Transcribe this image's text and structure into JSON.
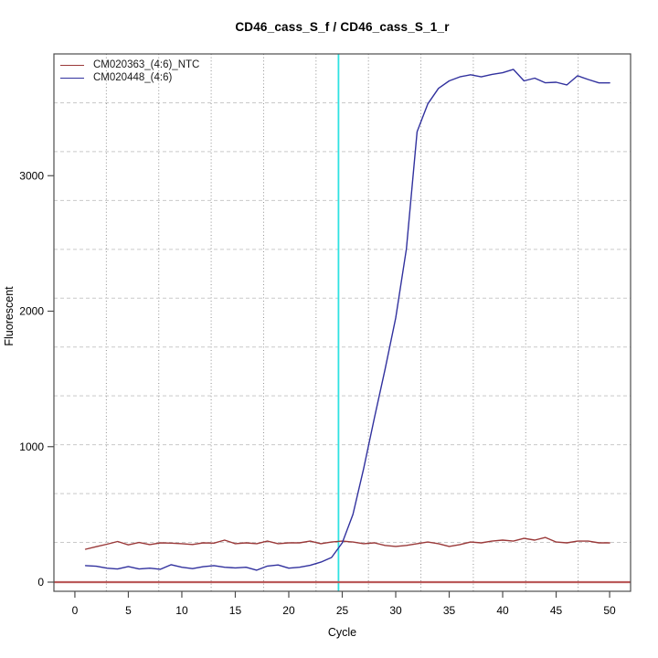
{
  "chart_data": {
    "type": "line",
    "title": "CD46_cass_S_f / CD46_cass_S_1_r",
    "xlabel": "Cycle",
    "ylabel": "Fluorescent",
    "xlim": [
      -1.96,
      51.96
    ],
    "ylim": [
      -67.5,
      3899
    ],
    "x_ticks": [
      0,
      5,
      10,
      15,
      20,
      25,
      30,
      35,
      40,
      45,
      50
    ],
    "y_ticks": [
      0,
      1000,
      2000,
      3000
    ],
    "grid": {
      "vertical_divisions": 11,
      "horizontal_divisions": 11,
      "vertical_style": "dotted",
      "horizontal_style": "dashed",
      "vertical_color": "#8f8f8f",
      "horizontal_color": "#c9c9c9"
    },
    "legend_position": "top-left",
    "threshold_cycle_line": {
      "x": 24.65,
      "color": "#2ee2e2"
    },
    "zero_line": {
      "y": 0,
      "color": "#bb5a5a"
    },
    "box_color": "#4d4d4d",
    "x": [
      1,
      2,
      3,
      4,
      5,
      6,
      7,
      8,
      9,
      10,
      11,
      12,
      13,
      14,
      15,
      16,
      17,
      18,
      19,
      20,
      21,
      22,
      23,
      24,
      25,
      26,
      27,
      28,
      29,
      30,
      31,
      32,
      33,
      34,
      35,
      36,
      37,
      38,
      39,
      40,
      41,
      42,
      43,
      44,
      45,
      46,
      47,
      48,
      49,
      50
    ],
    "series": [
      {
        "name": "CM020363_(4:6)_NTC",
        "color": "#9a3939",
        "values": [
          243,
          262,
          280,
          300,
          275,
          293,
          277,
          290,
          288,
          284,
          278,
          290,
          288,
          310,
          284,
          290,
          284,
          303,
          284,
          290,
          290,
          303,
          284,
          296,
          303,
          296,
          284,
          290,
          271,
          264,
          271,
          284,
          296,
          284,
          264,
          277,
          296,
          290,
          303,
          310,
          303,
          323,
          310,
          330,
          296,
          290,
          303,
          303,
          290,
          290
        ]
      },
      {
        "name": "CM020448_(4:6)",
        "color": "#31319e",
        "values": [
          122,
          117,
          103,
          97,
          115,
          97,
          103,
          95,
          129,
          110,
          100,
          114,
          122,
          110,
          105,
          110,
          88,
          119,
          127,
          103,
          110,
          124,
          148,
          182,
          290,
          500,
          838,
          1210,
          1570,
          1950,
          2460,
          3325,
          3530,
          3645,
          3700,
          3730,
          3745,
          3730,
          3748,
          3760,
          3785,
          3700,
          3720,
          3686,
          3690,
          3670,
          3738,
          3710,
          3685,
          3685
        ]
      }
    ]
  }
}
